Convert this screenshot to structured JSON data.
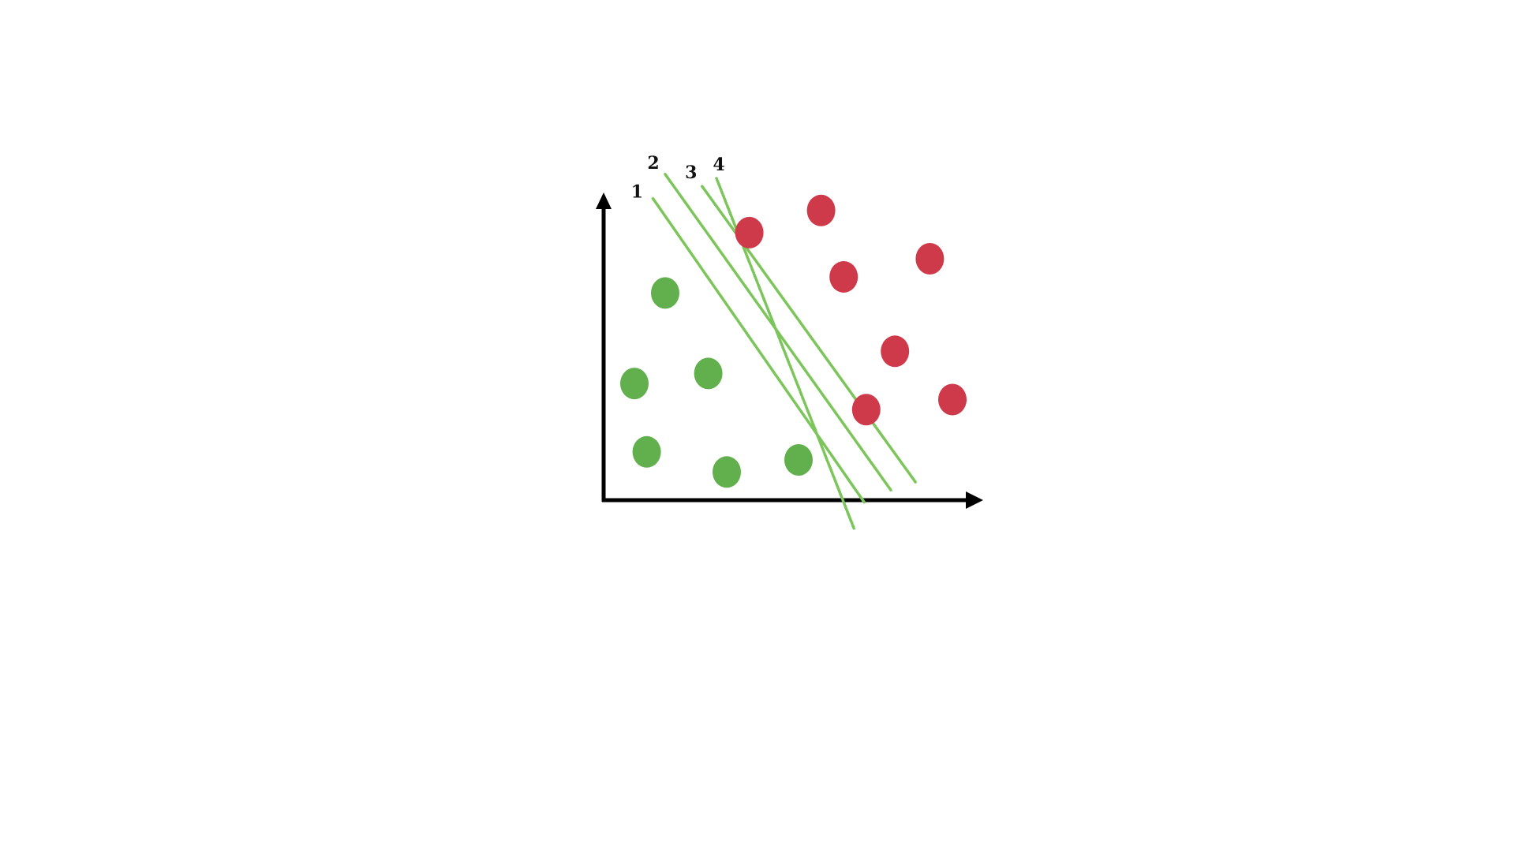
{
  "diagram": {
    "colors": {
      "axis": "#000000",
      "class_a": "#62b04d",
      "class_b": "#cf3a4a",
      "boundary": "#7cc55a"
    },
    "axes": {
      "x_axis": {
        "arrow": "right"
      },
      "y_axis": {
        "arrow": "up"
      }
    },
    "class_a_points": [
      {
        "x": 1.5,
        "y": 5.15
      },
      {
        "x": 0.75,
        "y": 2.9
      },
      {
        "x": 2.55,
        "y": 3.15
      },
      {
        "x": 1.05,
        "y": 1.2
      },
      {
        "x": 3.0,
        "y": 0.7
      },
      {
        "x": 4.75,
        "y": 1.0
      }
    ],
    "class_b_points": [
      {
        "x": 3.55,
        "y": 6.65
      },
      {
        "x": 5.3,
        "y": 7.2
      },
      {
        "x": 5.85,
        "y": 5.55
      },
      {
        "x": 7.95,
        "y": 6.0
      },
      {
        "x": 7.1,
        "y": 3.7
      },
      {
        "x": 6.4,
        "y": 2.25
      },
      {
        "x": 8.5,
        "y": 2.5
      }
    ],
    "boundary_lines": [
      {
        "label": "1",
        "from": [
          1.2,
          7.5
        ],
        "to": [
          6.35,
          -0.05
        ]
      },
      {
        "label": "2",
        "from": [
          1.5,
          8.1
        ],
        "to": [
          7.0,
          0.25
        ]
      },
      {
        "label": "3",
        "from": [
          2.4,
          7.8
        ],
        "to": [
          7.6,
          0.45
        ]
      },
      {
        "label": "4",
        "from": [
          2.75,
          8.0
        ],
        "to": [
          6.1,
          -0.7
        ]
      }
    ]
  }
}
